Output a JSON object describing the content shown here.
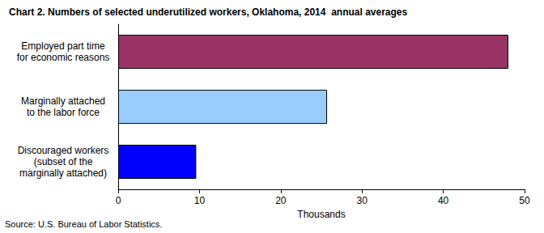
{
  "chart_data": {
    "type": "bar",
    "orientation": "horizontal",
    "title": "Chart 2. Numbers of selected underutilized workers, Oklahoma, 2014  annual averages",
    "xlabel": "Thousands",
    "annotations": [
      "Source: U.S. Bureau of Labor Statistics."
    ],
    "categories": [
      "Employed part time\nfor economic reasons",
      "Marginally attached\nto the labor force",
      "Discouraged workers\n(subset of the\nmarginally attached)"
    ],
    "values": [
      48.0,
      25.7,
      9.6
    ],
    "colors": [
      "#993366",
      "#99ccff",
      "#0000ff"
    ],
    "xlim": [
      0,
      50
    ],
    "xticks": [
      0,
      10,
      20,
      30,
      40,
      50
    ],
    "grid": false
  }
}
